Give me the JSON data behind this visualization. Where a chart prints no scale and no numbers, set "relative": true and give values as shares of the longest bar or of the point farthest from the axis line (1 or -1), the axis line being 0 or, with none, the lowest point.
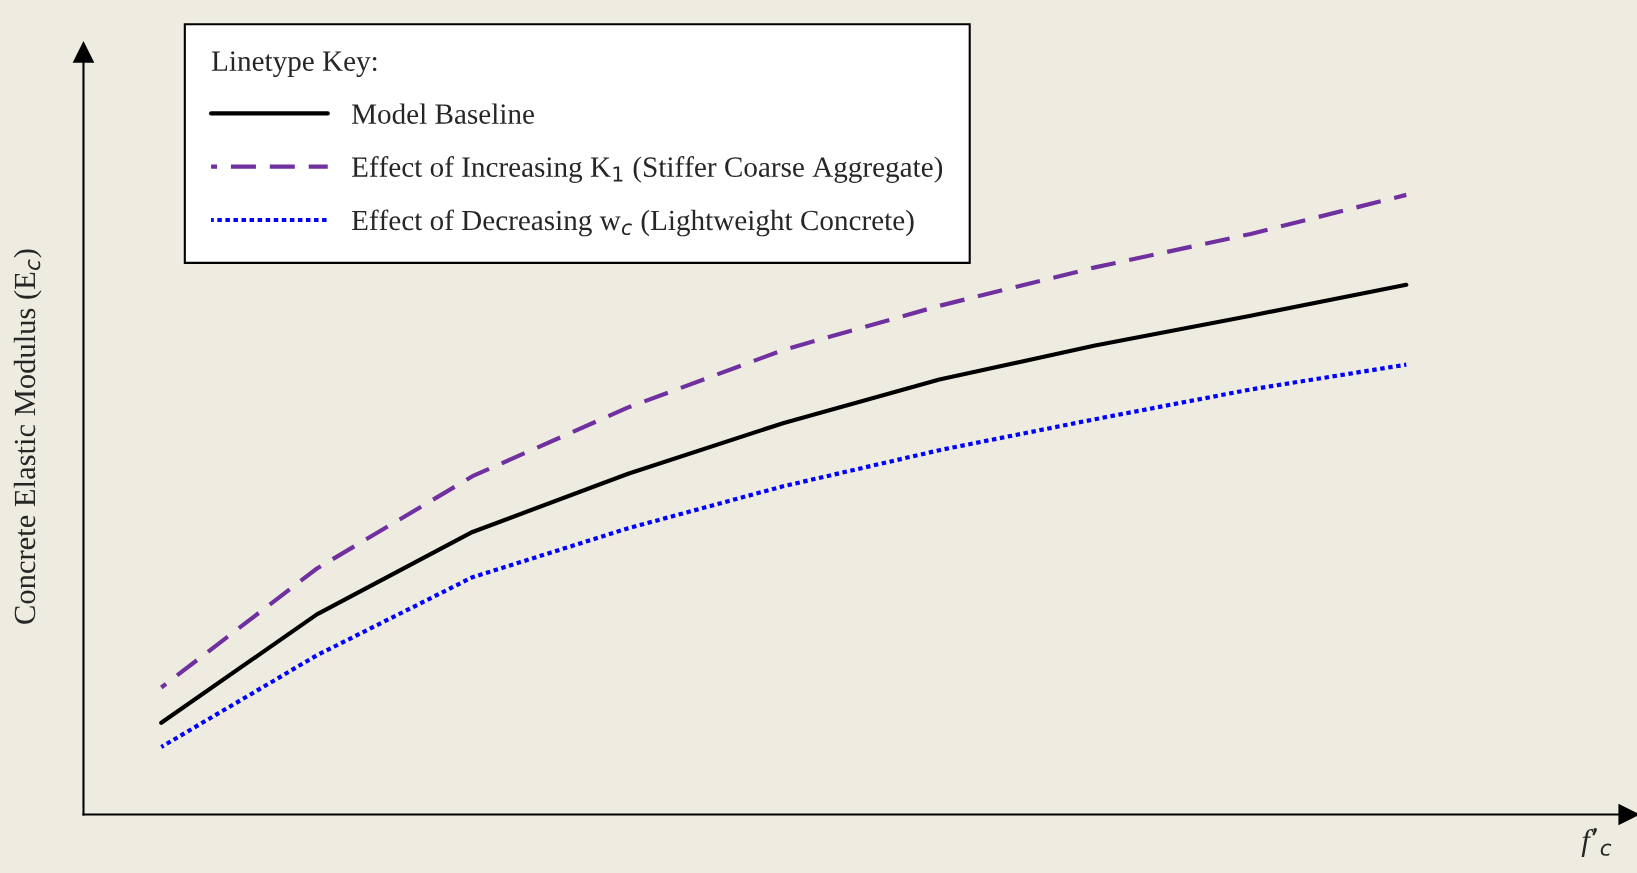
{
  "chart_data": {
    "type": "line",
    "relative": true,
    "xlabel": "f’$_{c}$",
    "ylabel": "Concrete Elastic Modulus (E$_{c}$)",
    "legend_title": "Linetype Key:",
    "legend": "top left",
    "categories": [
      null,
      null,
      null,
      null,
      null,
      null,
      null,
      null,
      null
    ],
    "series": [
      {
        "name": "Model Baseline",
        "color": "#000000",
        "line_style": "solid",
        "values": [
          0.148,
          0.323,
          0.456,
          0.55,
          0.632,
          0.702,
          0.757,
          0.805,
          0.855
        ]
      },
      {
        "name": "Effect of Increasing K$_{1}$ (Stiffer Coarse Aggregate)",
        "color": "#7030a0",
        "line_style": "dashed",
        "values": [
          0.205,
          0.397,
          0.546,
          0.657,
          0.75,
          0.821,
          0.883,
          0.937,
          1
        ]
      },
      {
        "name": "Effect of Decreasing w$_{c}$ (Lightweight Concrete)",
        "color": "#0000ff",
        "line_style": "dotted",
        "values": [
          0.109,
          0.257,
          0.383,
          0.462,
          0.53,
          0.588,
          0.638,
          0.686,
          0.726
        ]
      }
    ]
  }
}
